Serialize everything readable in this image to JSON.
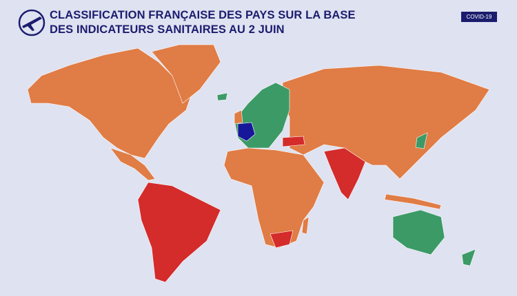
{
  "header": {
    "title_lines": [
      "CLASSIFICATION FRANÇAISE DES PAYS SUR LA BASE",
      "DES INDICATEURS SANITAIRES AU 2 JUIN"
    ],
    "badge": "COVID-19"
  }
}
